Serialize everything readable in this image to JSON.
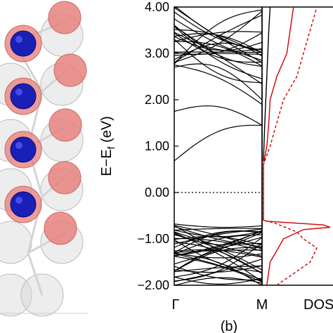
{
  "structure_panel": {
    "atoms_dark": [
      {
        "row": 0,
        "fill": "#1a1fb5"
      },
      {
        "row": 1,
        "fill": "#1a1fb5"
      },
      {
        "row": 2,
        "fill": "#1a1fb5"
      },
      {
        "row": 3,
        "fill": "#1a1fb5"
      }
    ],
    "atoms_pink_color": "#e8837f",
    "atoms_ghost_color": "#d8d8d8"
  },
  "chart_data": {
    "type": "line",
    "panel_label": "(b)",
    "ylabel": "E−E",
    "ylabel_sub": "f",
    "ylabel_unit": " (eV)",
    "ylim": [
      -2.0,
      4.0
    ],
    "yticks": [
      -2.0,
      -1.0,
      0.0,
      1.0,
      2.0,
      3.0,
      4.0
    ],
    "ytick_labels": [
      "−2.00",
      "−1.00",
      "0.00",
      "1.00",
      "2.00",
      "3.00",
      "4.00"
    ],
    "fermi_level": 0.0,
    "band_structure": {
      "x_labels": [
        "Γ",
        "M"
      ],
      "x": [
        0,
        1
      ],
      "color": "#000000",
      "conduction_band_minimum": 0.68,
      "valence_band_maximum": -0.68,
      "band_gap": 1.36
    },
    "dos": {
      "x_label": "DOS",
      "series": [
        {
          "style": "solid",
          "color": "#d10000",
          "points": [
            [
              0.05,
              -2.0
            ],
            [
              0.1,
              -1.5
            ],
            [
              0.3,
              -1.0
            ],
            [
              0.6,
              -0.8
            ],
            [
              1.0,
              -0.75
            ],
            [
              0.9,
              -0.7
            ],
            [
              0.05,
              -0.62
            ],
            [
              0.0,
              -0.6
            ],
            [
              0.0,
              0.6
            ],
            [
              0.01,
              0.68
            ],
            [
              0.05,
              1.0
            ],
            [
              0.08,
              1.5
            ],
            [
              0.1,
              2.0
            ],
            [
              0.2,
              2.5
            ],
            [
              0.35,
              3.0
            ],
            [
              0.4,
              3.5
            ],
            [
              0.45,
              4.0
            ]
          ]
        },
        {
          "style": "dashed",
          "color": "#d10000",
          "points": [
            [
              0.2,
              -2.0
            ],
            [
              0.7,
              -1.5
            ],
            [
              0.8,
              -1.2
            ],
            [
              0.6,
              -1.0
            ],
            [
              0.5,
              -0.85
            ],
            [
              0.15,
              -0.65
            ],
            [
              0.0,
              -0.6
            ],
            [
              0.0,
              0.6
            ],
            [
              0.02,
              0.68
            ],
            [
              0.1,
              1.0
            ],
            [
              0.2,
              1.5
            ],
            [
              0.3,
              2.0
            ],
            [
              0.5,
              2.5
            ],
            [
              0.6,
              3.0
            ],
            [
              0.7,
              3.5
            ],
            [
              0.8,
              4.0
            ]
          ]
        },
        {
          "style": "solid",
          "color": "#000000",
          "points": [
            [
              0.0,
              0.68
            ],
            [
              0.02,
              1.5
            ],
            [
              0.05,
              2.5
            ],
            [
              0.08,
              3.5
            ],
            [
              0.1,
              4.0
            ]
          ]
        }
      ]
    }
  }
}
